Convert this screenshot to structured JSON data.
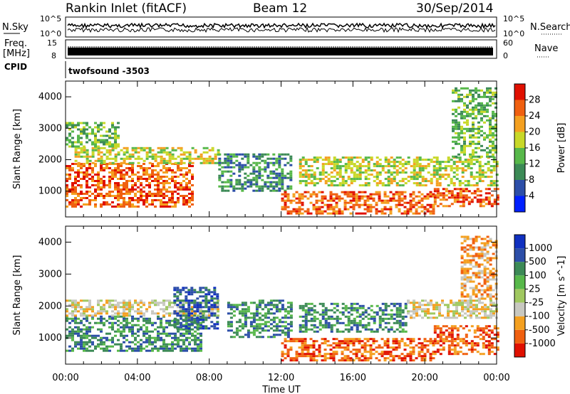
{
  "header": {
    "station": "Rankin Inlet (fitACF)",
    "beam": "Beam 12",
    "date": "30/Sep/2014"
  },
  "noise_panel": {
    "left_label": "N.Sky",
    "right_label": "N.Search",
    "left_ticks": [
      "10^5",
      "10^0"
    ],
    "right_ticks": [
      "10^5",
      "10^0"
    ]
  },
  "freq_panel": {
    "left_label_1": "Freq.",
    "left_label_2": "[MHz]",
    "left_ticks": [
      "15",
      "8"
    ],
    "right_label": "Nave",
    "right_ticks": [
      "60",
      "0"
    ]
  },
  "cpid_panel": {
    "label": "CPID",
    "value": "twofsound -3503"
  },
  "x_axis": {
    "title": "Time UT",
    "ticks": [
      "00:00",
      "04:00",
      "08:00",
      "12:00",
      "16:00",
      "20:00",
      "00:00"
    ]
  },
  "chart_data": [
    {
      "type": "heatmap",
      "name": "power",
      "ylabel": "Slant Range [km]",
      "yticks": [
        1000,
        2000,
        3000,
        4000
      ],
      "ylim": [
        180,
        4500
      ],
      "xlim_hours": [
        0,
        24
      ],
      "colorbar": {
        "title": "Power [dB]",
        "labels": [
          "28",
          "24",
          "20",
          "16",
          "12",
          "8",
          "4"
        ],
        "colors": [
          "#0020ff",
          "#2c4ea8",
          "#3c8a56",
          "#57b84a",
          "#c8d828",
          "#f4a020",
          "#f06010",
          "#e01000"
        ]
      },
      "regions": [
        {
          "t0": 0.0,
          "t1": 7.0,
          "r0": 500,
          "r1": 1900,
          "level": 6
        },
        {
          "t0": 0.5,
          "t1": 8.5,
          "r0": 1900,
          "r1": 2400,
          "level": 4
        },
        {
          "t0": 0.0,
          "t1": 3.0,
          "r0": 2400,
          "r1": 3200,
          "level": 3
        },
        {
          "t0": 8.5,
          "t1": 12.5,
          "r0": 1000,
          "r1": 2200,
          "level": 2
        },
        {
          "t0": 12.0,
          "t1": 20.5,
          "r0": 300,
          "r1": 1000,
          "level": 6
        },
        {
          "t0": 13.0,
          "t1": 24.0,
          "r0": 1200,
          "r1": 2100,
          "level": 4
        },
        {
          "t0": 20.5,
          "t1": 24.0,
          "r0": 500,
          "r1": 1100,
          "level": 6
        },
        {
          "t0": 21.5,
          "t1": 24.0,
          "r0": 2100,
          "r1": 4300,
          "level": 3
        }
      ]
    },
    {
      "type": "heatmap",
      "name": "velocity",
      "ylabel": "Slant Range [km]",
      "yticks": [
        1000,
        2000,
        3000,
        4000
      ],
      "ylim": [
        180,
        4500
      ],
      "xlim_hours": [
        0,
        24
      ],
      "colorbar": {
        "title": "Velocity [m s^-1]",
        "labels": [
          "1000",
          "500",
          "100",
          "25",
          "-25",
          "-100",
          "-500",
          "-1000"
        ],
        "colors": [
          "#e01000",
          "#f06010",
          "#f4a020",
          "#c8c8c0",
          "#a0c860",
          "#57b84a",
          "#3c8a56",
          "#2c4ea8",
          "#1030c0"
        ]
      },
      "regions": [
        {
          "t0": 0.0,
          "t1": 7.5,
          "r0": 600,
          "r1": 1700,
          "level": 6
        },
        {
          "t0": 0.0,
          "t1": 8.5,
          "r0": 1700,
          "r1": 2200,
          "level": 3
        },
        {
          "t0": 6.0,
          "t1": 8.5,
          "r0": 1300,
          "r1": 2600,
          "level": 7
        },
        {
          "t0": 9.0,
          "t1": 12.5,
          "r0": 1000,
          "r1": 2200,
          "level": 6
        },
        {
          "t0": 12.0,
          "t1": 20.5,
          "r0": 300,
          "r1": 1000,
          "level": 1
        },
        {
          "t0": 13.0,
          "t1": 19.0,
          "r0": 1200,
          "r1": 2100,
          "level": 6
        },
        {
          "t0": 19.0,
          "t1": 24.0,
          "r0": 1600,
          "r1": 2200,
          "level": 3
        },
        {
          "t0": 20.5,
          "t1": 24.0,
          "r0": 500,
          "r1": 1400,
          "level": 1
        },
        {
          "t0": 22.0,
          "t1": 24.0,
          "r0": 2200,
          "r1": 4200,
          "level": 2
        }
      ]
    }
  ]
}
